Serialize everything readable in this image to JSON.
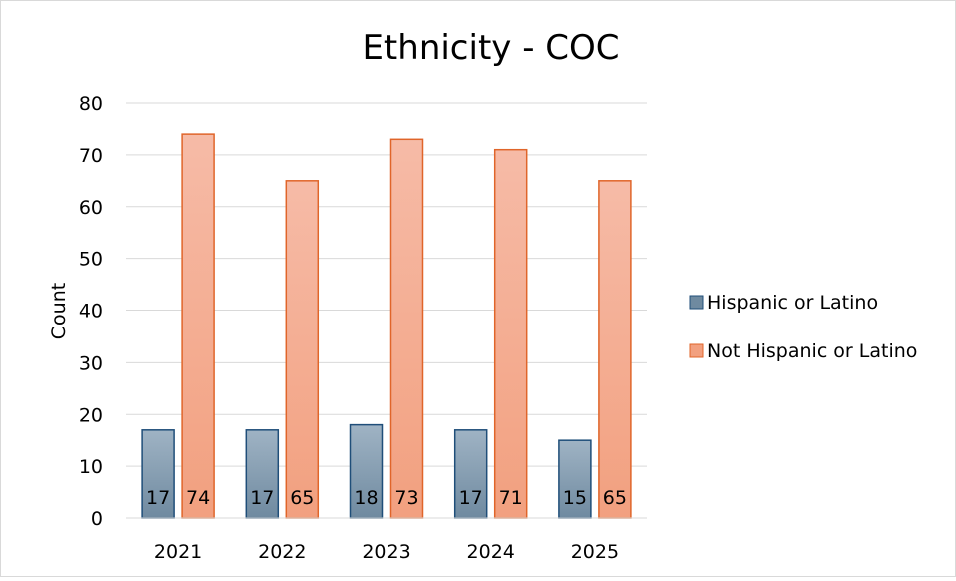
{
  "chart_data": {
    "type": "bar",
    "title": "Ethnicity - COC",
    "xlabel": "",
    "ylabel": "Count",
    "categories": [
      "2021",
      "2022",
      "2023",
      "2024",
      "2025"
    ],
    "ylim": [
      0,
      80
    ],
    "yticks": [
      0,
      10,
      20,
      30,
      40,
      50,
      60,
      70,
      80
    ],
    "grid": true,
    "legend_position": "right",
    "series": [
      {
        "name": "Hispanic or Latino",
        "values": [
          17,
          17,
          18,
          17,
          15
        ],
        "color_top": "#9fb3c4",
        "color_bottom": "#6f8aa0",
        "stroke": "#1f4e79"
      },
      {
        "name": "Not Hispanic or Latino",
        "values": [
          74,
          65,
          73,
          71,
          65
        ],
        "color_top": "#f6bba7",
        "color_bottom": "#f2a07f",
        "stroke": "#e0652a"
      }
    ]
  }
}
